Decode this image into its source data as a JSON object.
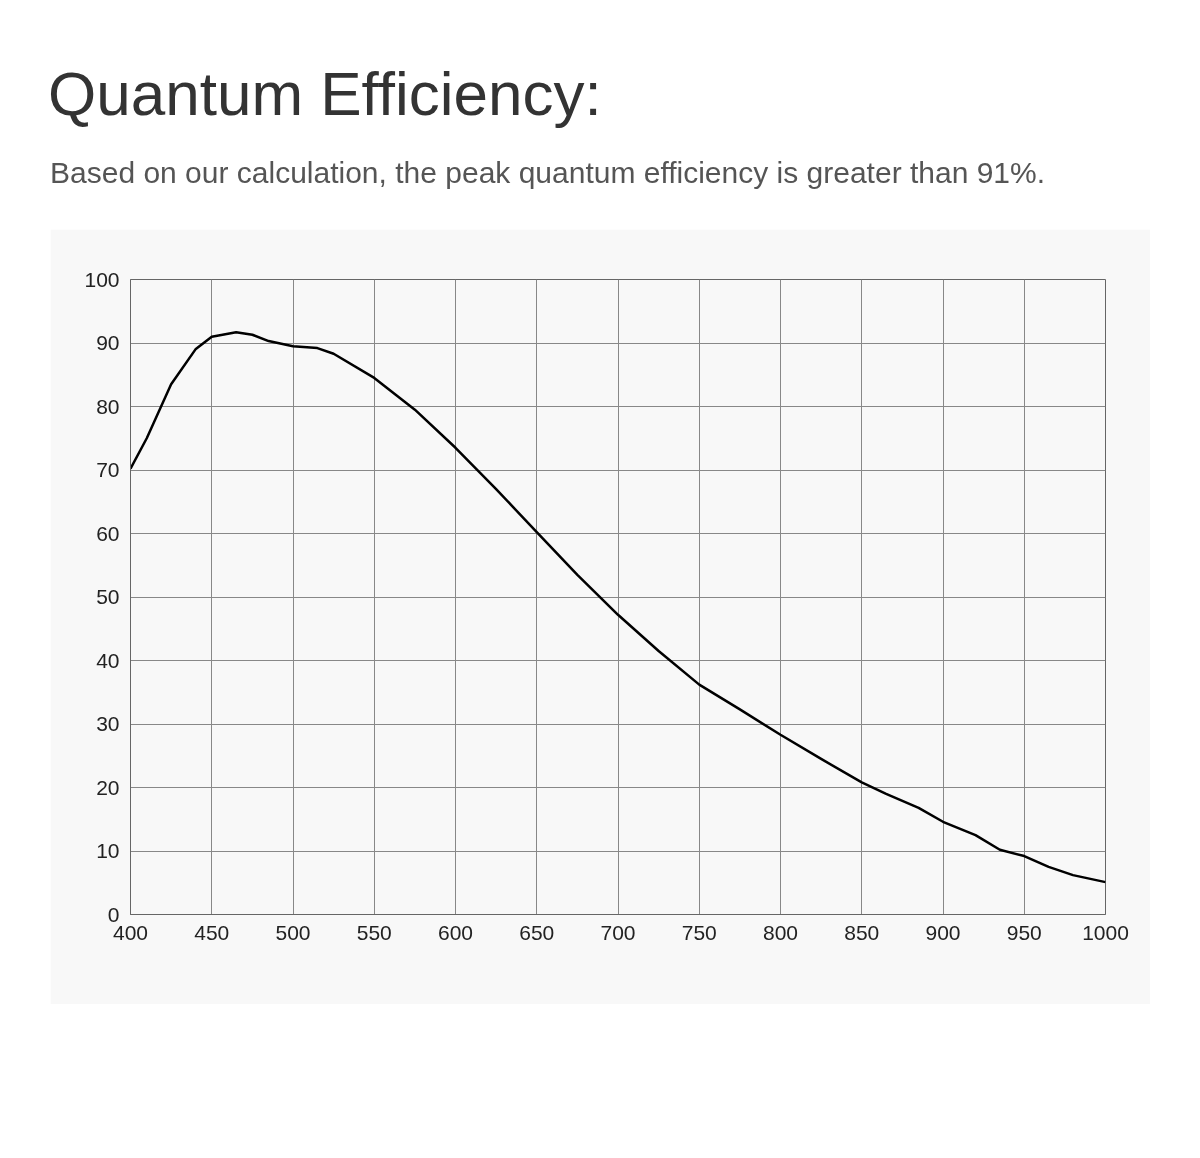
{
  "chart_data": {
    "type": "line",
    "title": "Quantum Efficiency:",
    "subtitle": "Based on our calculation, the peak quantum efficiency is greater than 91%.",
    "x": [
      400,
      410,
      425,
      440,
      450,
      465,
      475,
      485,
      500,
      515,
      525,
      550,
      575,
      600,
      625,
      650,
      675,
      700,
      725,
      750,
      775,
      800,
      825,
      850,
      865,
      885,
      900,
      920,
      935,
      950,
      965,
      980,
      1000
    ],
    "series": [
      {
        "color": "#000000",
        "values": [
          70.2,
          75,
          83.5,
          89,
          91,
          91.7,
          91.3,
          90.3,
          89.5,
          89.2,
          88.3,
          84.5,
          79.5,
          73.5,
          67,
          60.2,
          53.5,
          47.2,
          41.5,
          36.2,
          32.3,
          28.3,
          24.5,
          20.8,
          19,
          16.8,
          14.6,
          12.5,
          10.2,
          9.2,
          7.5,
          6.2,
          5.1
        ]
      }
    ],
    "xlim": [
      400,
      1000
    ],
    "ylim": [
      0,
      100
    ],
    "xticks": [
      400,
      450,
      500,
      550,
      600,
      650,
      700,
      750,
      800,
      850,
      900,
      950,
      1000
    ],
    "yticks": [
      0,
      10,
      20,
      30,
      40,
      50,
      60,
      70,
      80,
      90,
      100
    ],
    "grid": true,
    "marker": "none",
    "line_style": "solid"
  }
}
